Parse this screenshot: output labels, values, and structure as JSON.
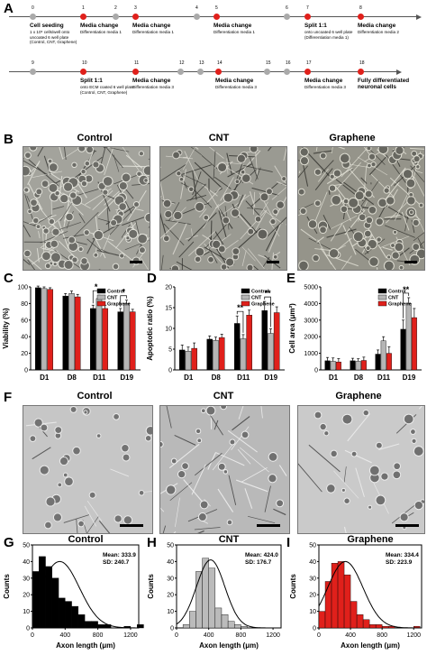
{
  "panels": {
    "A": "A",
    "B": "B",
    "C": "C",
    "D": "D",
    "E": "E",
    "F": "F",
    "G": "G",
    "H": "H",
    "I": "I"
  },
  "timeline": {
    "row1": [
      {
        "day": "0",
        "color": "#aaaaaa",
        "title": "Cell seeding",
        "sub": "1 x 10⁵ cells/well onto uncoated 6 well plate (Control, CNT, Graphene)"
      },
      {
        "day": "1",
        "color": "#e0201b",
        "title": "Media change",
        "sub": "Differentiation media 1"
      },
      {
        "day": "2",
        "color": "#aaaaaa",
        "title": "",
        "sub": ""
      },
      {
        "day": "3",
        "color": "#e0201b",
        "title": "Media change",
        "sub": "Differentiation media 1"
      },
      {
        "day": "4",
        "color": "#aaaaaa",
        "title": "",
        "sub": ""
      },
      {
        "day": "5",
        "color": "#e0201b",
        "title": "Media change",
        "sub": "Differentiation media 1"
      },
      {
        "day": "6",
        "color": "#aaaaaa",
        "title": "",
        "sub": ""
      },
      {
        "day": "7",
        "color": "#e0201b",
        "title": "Split 1:1",
        "sub": "onto uncoated 6 well plate (Differentiation media 1)"
      },
      {
        "day": "8",
        "color": "#e0201b",
        "title": "Media change",
        "sub": "Differentiation media 2"
      }
    ],
    "row2": [
      {
        "day": "9",
        "color": "#aaaaaa",
        "title": "",
        "sub": ""
      },
      {
        "day": "10",
        "color": "#e0201b",
        "title": "Split 1:1",
        "sub": "onto ECM coated 6 well plate (Control, CNT, Graphene)"
      },
      {
        "day": "11",
        "color": "#e0201b",
        "title": "Media change",
        "sub": "Differentiation media 3"
      },
      {
        "day": "12",
        "color": "#aaaaaa",
        "title": "",
        "sub": ""
      },
      {
        "day": "13",
        "color": "#aaaaaa",
        "title": "",
        "sub": ""
      },
      {
        "day": "14",
        "color": "#e0201b",
        "title": "Media change",
        "sub": "Differentiation media 3"
      },
      {
        "day": "15",
        "color": "#aaaaaa",
        "title": "",
        "sub": ""
      },
      {
        "day": "16",
        "color": "#aaaaaa",
        "title": "",
        "sub": ""
      },
      {
        "day": "17",
        "color": "#e0201b",
        "title": "Media change",
        "sub": "Differentiation media 3"
      },
      {
        "day": "18",
        "color": "#e0201b",
        "title": "Fully differentiated neuronal cells",
        "sub": ""
      }
    ]
  },
  "micro_titles": {
    "control": "Control",
    "cnt": "CNT",
    "graphene": "Graphene"
  },
  "colors": {
    "control": "#000000",
    "cnt": "#b5b5b5",
    "graphene": "#e0201b"
  },
  "chart_data": [
    {
      "id": "C",
      "type": "bar",
      "ylabel": "Viability (%)",
      "ylim": [
        0,
        100
      ],
      "yticks": [
        0,
        20,
        40,
        60,
        80,
        100
      ],
      "categories": [
        "D1",
        "D8",
        "D11",
        "D19"
      ],
      "series": [
        {
          "name": "Control",
          "values": [
            99,
            89,
            74,
            70
          ]
        },
        {
          "name": "CNT",
          "values": [
            98,
            92,
            86,
            80
          ]
        },
        {
          "name": "Graphene",
          "values": [
            97,
            88,
            74,
            70
          ]
        }
      ],
      "errors": [
        [
          2,
          3,
          4,
          4
        ],
        [
          2,
          3,
          4,
          4
        ],
        [
          2,
          3,
          4,
          3
        ]
      ],
      "sig": [
        {
          "cat": 2,
          "label": "*"
        },
        {
          "cat": 3,
          "label": "*"
        }
      ]
    },
    {
      "id": "D",
      "type": "bar",
      "ylabel": "Apoptotic ratio (%)",
      "ylim": [
        0,
        20
      ],
      "yticks": [
        0,
        5,
        10,
        15,
        20
      ],
      "categories": [
        "D1",
        "D8",
        "D11",
        "D19"
      ],
      "series": [
        {
          "name": "Control",
          "values": [
            4.8,
            7.4,
            11.2,
            14.3
          ]
        },
        {
          "name": "CNT",
          "values": [
            4.5,
            7.1,
            7.5,
            8.8
          ]
        },
        {
          "name": "Graphene",
          "values": [
            5.2,
            7.8,
            13.2,
            13.8
          ]
        }
      ],
      "errors": [
        [
          1.2,
          0.8,
          1.8,
          2.2
        ],
        [
          1.0,
          0.8,
          1.0,
          1.1
        ],
        [
          1.3,
          0.8,
          1.2,
          1.4
        ]
      ],
      "sig": [
        {
          "cat": 2,
          "label": "**"
        },
        {
          "cat": 3,
          "label": "**"
        }
      ]
    },
    {
      "id": "E",
      "type": "bar",
      "ylabel": "Cell area (μm²)",
      "ylim": [
        0,
        5000
      ],
      "yticks": [
        0,
        1000,
        2000,
        3000,
        4000,
        5000
      ],
      "categories": [
        "D1",
        "D8",
        "D11",
        "D19"
      ],
      "series": [
        {
          "name": "Control",
          "values": [
            550,
            550,
            950,
            2450
          ]
        },
        {
          "name": "CNT",
          "values": [
            520,
            520,
            1750,
            4000
          ]
        },
        {
          "name": "Graphene",
          "values": [
            480,
            570,
            1000,
            3150
          ]
        }
      ],
      "errors": [
        [
          200,
          150,
          250,
          550
        ],
        [
          200,
          150,
          250,
          350
        ],
        [
          200,
          200,
          400,
          550
        ]
      ],
      "sig": [
        {
          "cat": 3,
          "label": "**"
        }
      ]
    },
    {
      "id": "G",
      "type": "histogram",
      "title": "Control",
      "xlabel": "Axon length (μm)",
      "ylabel": "Counts",
      "xlim": [
        0,
        1300
      ],
      "xticks": [
        0,
        400,
        800,
        1200
      ],
      "ylim": [
        0,
        50
      ],
      "yticks": [
        0,
        10,
        20,
        30,
        40,
        50
      ],
      "bin_width": 80,
      "counts": [
        34,
        43,
        37,
        30,
        18,
        16,
        13,
        8,
        4,
        4,
        2,
        2,
        0,
        0,
        1,
        0,
        2
      ],
      "mean_label": "Mean: 333.9",
      "sd_label": "SD: 240.7",
      "mean": 333.9,
      "sd": 240.7,
      "peak": 40,
      "fill": "#000000"
    },
    {
      "id": "H",
      "type": "histogram",
      "title": "CNT",
      "xlabel": "Axon length (μm)",
      "ylabel": "Counts",
      "xlim": [
        0,
        1300
      ],
      "xticks": [
        0,
        400,
        800,
        1200
      ],
      "ylim": [
        0,
        50
      ],
      "yticks": [
        0,
        10,
        20,
        30,
        40,
        50
      ],
      "bin_width": 80,
      "counts": [
        0,
        2,
        10,
        34,
        42,
        36,
        12,
        8,
        4,
        2,
        1
      ],
      "mean_label": "Mean: 424.0",
      "sd_label": "SD: 176.7",
      "mean": 424.0,
      "sd": 176.7,
      "peak": 41,
      "fill": "#bbbbbb"
    },
    {
      "id": "I",
      "type": "histogram",
      "title": "Graphene",
      "xlabel": "Axon length (μm)",
      "ylabel": "Counts",
      "xlim": [
        0,
        1300
      ],
      "xticks": [
        0,
        400,
        800,
        1200
      ],
      "ylim": [
        0,
        50
      ],
      "yticks": [
        0,
        10,
        20,
        30,
        40,
        50
      ],
      "bin_width": 80,
      "counts": [
        10,
        28,
        39,
        40,
        32,
        16,
        8,
        5,
        2,
        2,
        1,
        1,
        0,
        0,
        0,
        1
      ],
      "mean_label": "Mean: 334.4",
      "sd_label": "SD: 223.9",
      "mean": 334.4,
      "sd": 223.9,
      "peak": 40,
      "fill": "#e0201b"
    }
  ]
}
